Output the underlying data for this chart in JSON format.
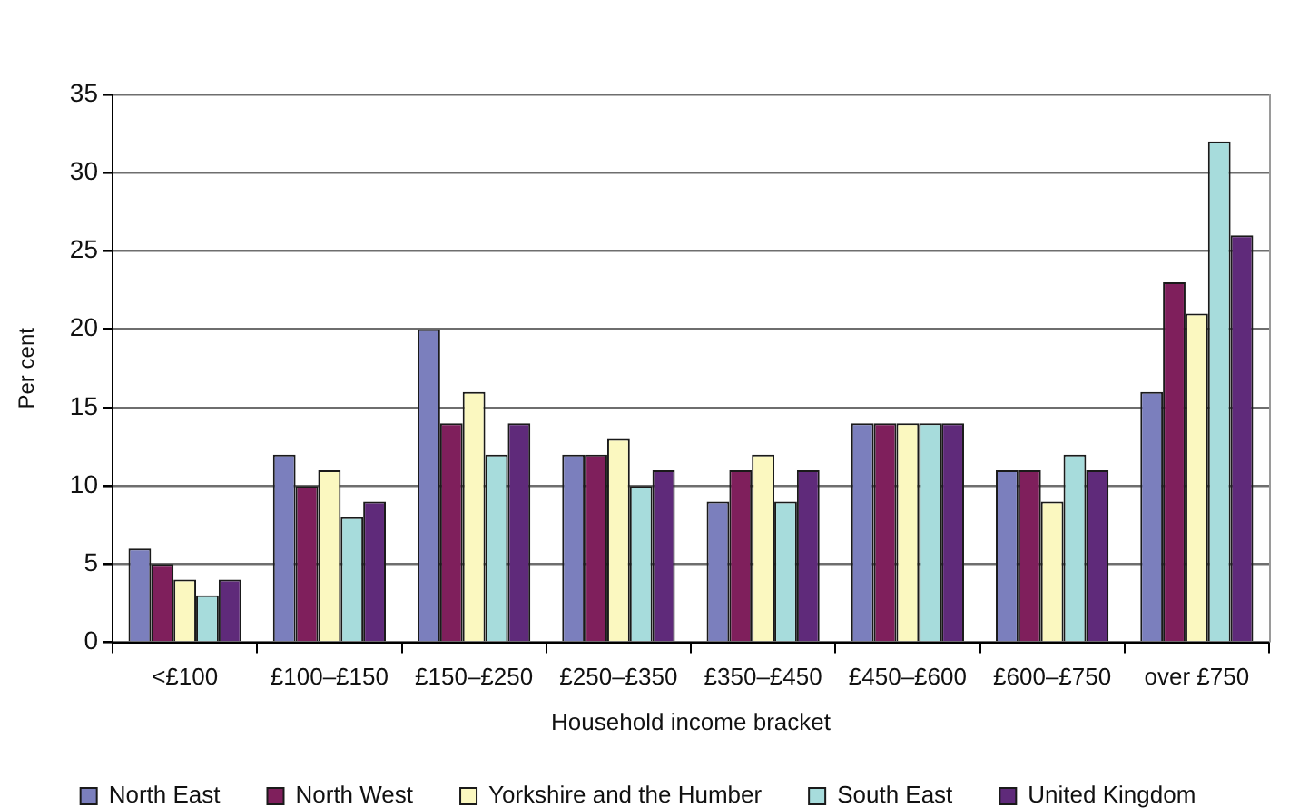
{
  "chart_data": {
    "type": "bar",
    "xlabel": "Household income bracket",
    "ylabel": "Per cent",
    "categories": [
      "<£100",
      "£100–£150",
      "£150–£250",
      "£250–£350",
      "£350–£450",
      "£450–£600",
      "£600–£750",
      "over £750"
    ],
    "series": [
      {
        "name": "North East",
        "color": "#7b7fbd",
        "values": [
          6,
          12,
          20,
          12,
          9,
          14,
          11,
          16
        ]
      },
      {
        "name": "North West",
        "color": "#7f1f5c",
        "values": [
          5,
          10,
          14,
          12,
          11,
          14,
          11,
          23
        ]
      },
      {
        "name": "Yorkshire and the Humber",
        "color": "#fbf8c0",
        "values": [
          4,
          11,
          16,
          13,
          12,
          14,
          9,
          21
        ]
      },
      {
        "name": "South East",
        "color": "#a7dcdc",
        "values": [
          3,
          8,
          12,
          10,
          9,
          14,
          12,
          32
        ]
      },
      {
        "name": "United Kingdom",
        "color": "#5f2a7a",
        "values": [
          4,
          9,
          14,
          11,
          11,
          14,
          11,
          26
        ]
      }
    ],
    "ylim": [
      0,
      35
    ],
    "yticks": [
      0,
      5,
      10,
      15,
      20,
      25,
      30,
      35
    ],
    "grid": "y",
    "legend": "bottom"
  }
}
